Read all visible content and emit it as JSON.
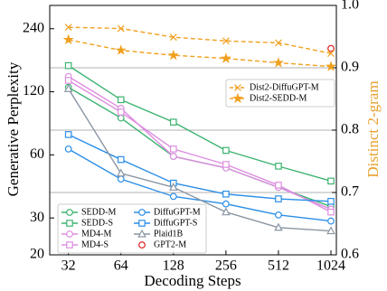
{
  "chart_data": {
    "type": "line",
    "x_label": "Decoding Steps",
    "y_label": "Generative Perplexity",
    "y2_label": "Distinct 2-gram",
    "x": [
      32,
      64,
      128,
      256,
      512,
      1024
    ],
    "xlim": [
      25,
      1100
    ],
    "xticks": [
      32,
      64,
      128,
      256,
      512,
      1024
    ],
    "xscale": "log",
    "ylim": [
      20,
      310
    ],
    "yticks": [
      20,
      30,
      60,
      120,
      240
    ],
    "yscale": "log",
    "y2lim": [
      0.6,
      1.0
    ],
    "y2ticks": [
      0.6,
      0.7,
      0.8,
      0.9,
      {
        "value": 1.0,
        "label": "1.0"
      }
    ],
    "y2_color": "#e8a030",
    "y2_grid": true,
    "series": [
      {
        "name": "SEDD-M",
        "color": "#3cb371",
        "marker": "o",
        "values": [
          126,
          90,
          59,
          52,
          42,
          34
        ]
      },
      {
        "name": "SEDD-S",
        "color": "#3cb371",
        "marker": "s",
        "values": [
          160,
          110,
          86,
          63,
          53,
          45
        ]
      },
      {
        "name": "MD4-M",
        "color": "#dd8ee0",
        "marker": "o",
        "values": [
          142,
          100,
          59,
          52,
          42,
          33
        ]
      },
      {
        "name": "MD4-S",
        "color": "#dd8ee0",
        "marker": "s",
        "values": [
          136,
          96,
          64,
          54,
          43,
          32
        ]
      },
      {
        "name": "DiffuGPT-M",
        "color": "#2b8ee8",
        "marker": "o",
        "values": [
          64,
          46,
          38,
          35,
          31,
          29
        ]
      },
      {
        "name": "DiffuGPT-S",
        "color": "#2b8ee8",
        "marker": "s",
        "values": [
          75,
          57,
          44,
          39,
          37,
          36
        ]
      },
      {
        "name": "Plaid1B",
        "color": "#8a96a3",
        "marker": "^",
        "values": [
          124,
          49,
          42,
          32,
          27,
          26
        ]
      },
      {
        "name": "GPT2-M",
        "color": "#e02020",
        "marker": "o",
        "axis": "y2",
        "values": [
          null,
          null,
          null,
          null,
          null,
          0.931
        ]
      },
      {
        "name": "Dist2-DiffuGPT-M",
        "color": "#f0a020",
        "marker": "x",
        "linestyle": "dashed",
        "axis": "y2",
        "values": [
          0.965,
          0.963,
          0.949,
          0.943,
          0.94,
          0.923
        ]
      },
      {
        "name": "Dist2-SEDD-M",
        "color": "#f0a020",
        "marker": "*",
        "linestyle": "dashed",
        "axis": "y2",
        "values": [
          0.945,
          0.928,
          0.92,
          0.915,
          0.908,
          0.902
        ]
      }
    ]
  }
}
